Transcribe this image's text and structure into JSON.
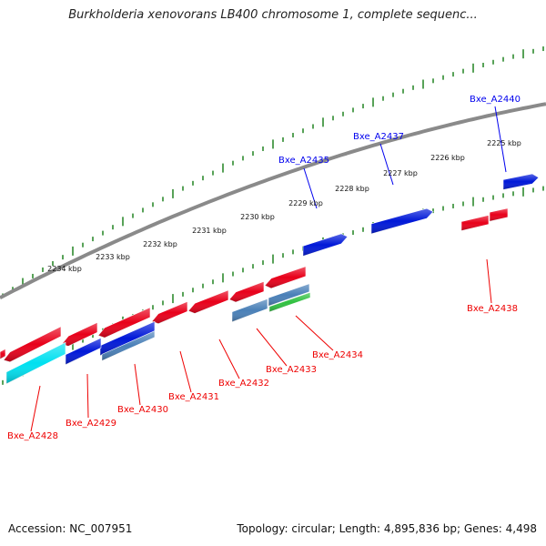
{
  "title": "Burkholderia xenovorans LB400 chromosome 1, complete sequenc...",
  "footer": {
    "accession": "Accession: NC_007951",
    "topology": "Topology: circular; Length: 4,895,836 bp; Genes: 4,498"
  },
  "colors": {
    "backbone": "#8a8a8a",
    "ticks": "#2e8b2e",
    "forward_gene": "#0000ee",
    "reverse_gene": "#ee0000",
    "gene_red": "#e8001a",
    "gene_blue": "#0018d8",
    "gene_cyan": "#00e0f0",
    "gene_steel": "#4a80b8",
    "gene_green": "#30c040"
  },
  "scale_labels": [
    "2225 kbp",
    "2226 kbp",
    "2227 kbp",
    "2228 kbp",
    "2229 kbp",
    "2230 kbp",
    "2231 kbp",
    "2232 kbp",
    "2233 kbp",
    "2234 kbp"
  ],
  "gene_labels": [
    {
      "text": "Bxe_A2440",
      "strand": "forward"
    },
    {
      "text": "Bxe_A2437",
      "strand": "forward"
    },
    {
      "text": "Bxe_A2435",
      "strand": "forward"
    },
    {
      "text": "Bxe_A2438",
      "strand": "reverse"
    },
    {
      "text": "Bxe_A2434",
      "strand": "reverse"
    },
    {
      "text": "Bxe_A2433",
      "strand": "reverse"
    },
    {
      "text": "Bxe_A2432",
      "strand": "reverse"
    },
    {
      "text": "Bxe_A2431",
      "strand": "reverse"
    },
    {
      "text": "Bxe_A2430",
      "strand": "reverse"
    },
    {
      "text": "Bxe_A2429",
      "strand": "reverse"
    },
    {
      "text": "Bxe_A2428",
      "strand": "reverse"
    }
  ]
}
